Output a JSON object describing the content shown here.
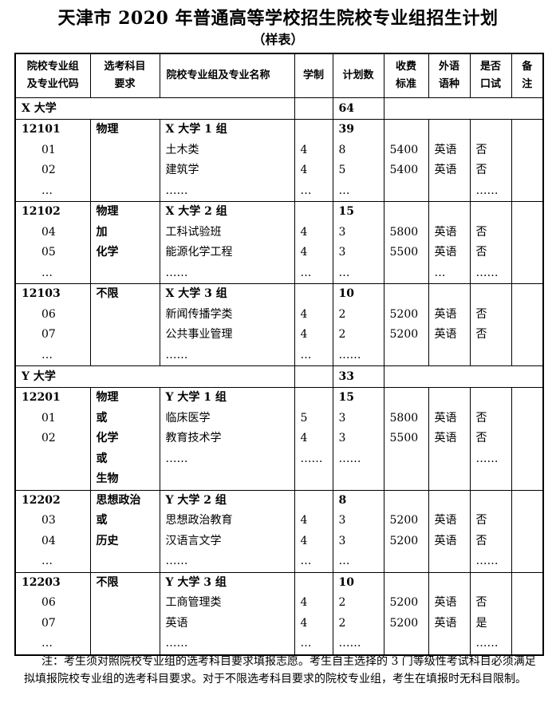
{
  "title": "天津市 2020 年普通高等学校招生院校专业组招生计划",
  "subtitle": "（样表）",
  "table": {
    "headers": [
      "院校专业组\n及专业代码",
      "选考科目\n要求",
      "院校专业组及专业名称",
      "学制",
      "计划数",
      "收费\n标准",
      "外语\n语种",
      "是否\n口试",
      "备\n注"
    ],
    "universities": [
      {
        "name": "X 大学",
        "plan": 64,
        "groups": [
          {
            "rows": [
              [
                "12101",
                "物理",
                "X 大学 1 组",
                null,
                39,
                null,
                null,
                null,
                null
              ],
              [
                "01",
                null,
                "土木类",
                4,
                8,
                5400,
                "英语",
                "否",
                null
              ],
              [
                "02",
                null,
                "建筑学",
                4,
                5,
                5400,
                "英语",
                "否",
                null
              ],
              [
                "…",
                null,
                "……",
                "…",
                "…",
                null,
                null,
                "……",
                null
              ]
            ]
          },
          {
            "rows": [
              [
                "12102",
                "物理",
                "X 大学 2 组",
                null,
                15,
                null,
                null,
                null,
                null
              ],
              [
                "04",
                "加",
                "工科试验班",
                4,
                3,
                5800,
                "英语",
                "否",
                null
              ],
              [
                "05",
                "化学",
                "能源化学工程",
                4,
                3,
                5500,
                "英语",
                "否",
                null
              ],
              [
                "…",
                null,
                "……",
                "…",
                "…",
                null,
                "…",
                "……",
                null
              ]
            ]
          },
          {
            "rows": [
              [
                "12103",
                "不限",
                "X 大学 3 组",
                null,
                10,
                null,
                null,
                null,
                null
              ],
              [
                "06",
                null,
                "新闻传播学类",
                4,
                2,
                5200,
                "英语",
                "否",
                null
              ],
              [
                "07",
                null,
                "公共事业管理",
                4,
                2,
                5200,
                "英语",
                "否",
                null
              ],
              [
                "…",
                null,
                "……",
                "…",
                "……",
                null,
                null,
                null,
                null
              ]
            ]
          }
        ]
      },
      {
        "name": "Y 大学",
        "plan": 33,
        "groups": [
          {
            "rows": [
              [
                "12201",
                "物理",
                "Y 大学 1 组",
                null,
                15,
                null,
                null,
                null,
                null
              ],
              [
                "01",
                "或",
                "临床医学",
                5,
                3,
                5800,
                "英语",
                "否",
                null
              ],
              [
                "02",
                "化学",
                "教育技术学",
                4,
                3,
                5500,
                "英语",
                "否",
                null
              ],
              [
                null,
                "或",
                "……",
                "……",
                "……",
                null,
                null,
                "……",
                null
              ],
              [
                null,
                "生物",
                null,
                null,
                null,
                null,
                null,
                null,
                null
              ]
            ]
          },
          {
            "rows": [
              [
                "12202",
                "思想政治",
                "Y 大学 2 组",
                null,
                8,
                null,
                null,
                null,
                null
              ],
              [
                "03",
                "或",
                "思想政治教育",
                4,
                3,
                5200,
                "英语",
                "否",
                null
              ],
              [
                "04",
                "历史",
                "汉语言文学",
                4,
                3,
                5200,
                "英语",
                "否",
                null
              ],
              [
                "…",
                null,
                "……",
                "…",
                "…",
                null,
                null,
                "……",
                null
              ]
            ]
          },
          {
            "rows": [
              [
                "12203",
                "不限",
                "Y 大学 3 组",
                null,
                10,
                null,
                null,
                null,
                null
              ],
              [
                "06",
                null,
                "工商管理类",
                4,
                2,
                5200,
                "英语",
                "否",
                null
              ],
              [
                "07",
                null,
                "英语",
                4,
                2,
                5200,
                "英语",
                "是",
                null
              ],
              [
                "…",
                null,
                "……",
                "…",
                "……",
                null,
                null,
                "……",
                null
              ]
            ]
          }
        ]
      }
    ]
  },
  "note": "注：考生须对照院校专业组的选考科目要求填报志愿。考生自主选择的 3 门等级性考试科目必须满足拟填报院校专业组的选考科目要求。对于不限选考科目要求的院校专业组，考生在填报时无科目限制。"
}
